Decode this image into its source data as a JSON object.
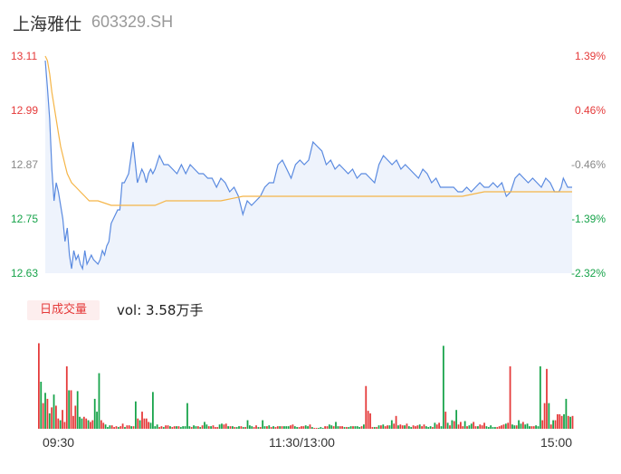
{
  "header": {
    "name": "上海雅仕",
    "code": "603329.SH"
  },
  "volume_panel": {
    "badge": "日成交量",
    "summary": "vol: 3.58万手"
  },
  "colors": {
    "up": "#e53a3a",
    "down": "#17a34a",
    "price_line": "#5a8ae0",
    "avg_line": "#f5b547",
    "fill": "#eef3fc"
  },
  "chart_data": [
    {
      "type": "line",
      "title": "",
      "y_ticks_left": [
        "13.11",
        "12.99",
        "12.87",
        "12.75",
        "12.63"
      ],
      "y_ticks_right": [
        "1.39%",
        "0.46%",
        "-0.46%",
        "-1.39%",
        "-2.32%"
      ],
      "x_ticks": [
        "09:30",
        "11:30/13:00",
        "15:00"
      ],
      "ylim": [
        12.63,
        13.11
      ],
      "x_range": [
        0,
        240
      ],
      "series": [
        {
          "key": "price",
          "x": [
            0,
            1,
            2,
            3,
            4,
            5,
            6,
            8,
            9,
            10,
            11,
            12,
            13,
            14,
            15,
            16,
            17,
            18,
            19,
            20,
            21,
            22,
            24,
            25,
            26,
            27,
            28,
            29,
            30,
            31,
            32,
            33,
            34,
            35,
            36,
            38,
            40,
            42,
            44,
            45,
            46,
            47,
            48,
            49,
            50,
            52,
            54,
            56,
            58,
            60,
            62,
            64,
            66,
            68,
            70,
            72,
            74,
            76,
            78,
            80,
            82,
            84,
            86,
            88,
            90,
            92,
            94,
            96,
            98,
            100,
            102,
            104,
            106,
            108,
            110,
            112,
            114,
            116,
            118,
            120,
            122,
            124,
            126,
            128,
            130,
            132,
            134,
            136,
            138,
            140,
            142,
            144,
            146,
            148,
            150,
            152,
            154,
            156,
            158,
            160,
            162,
            164,
            166,
            168,
            170,
            172,
            174,
            176,
            178,
            180,
            182,
            184,
            186,
            188,
            190,
            192,
            194,
            196,
            198,
            200,
            202,
            204,
            206,
            208,
            210,
            212,
            214,
            216,
            218,
            220,
            222,
            224,
            226,
            228,
            230,
            232,
            234,
            235,
            236,
            237,
            238,
            239,
            240
          ],
          "values": [
            13.1,
            13.04,
            12.97,
            12.86,
            12.79,
            12.83,
            12.81,
            12.75,
            12.7,
            12.73,
            12.67,
            12.64,
            12.68,
            12.66,
            12.67,
            12.65,
            12.64,
            12.68,
            12.65,
            12.66,
            12.67,
            12.66,
            12.65,
            12.66,
            12.68,
            12.67,
            12.69,
            12.7,
            12.74,
            12.75,
            12.76,
            12.77,
            12.77,
            12.83,
            12.83,
            12.85,
            12.92,
            12.83,
            12.86,
            12.85,
            12.83,
            12.85,
            12.86,
            12.85,
            12.86,
            12.89,
            12.87,
            12.87,
            12.86,
            12.85,
            12.87,
            12.85,
            12.87,
            12.86,
            12.85,
            12.85,
            12.84,
            12.84,
            12.82,
            12.84,
            12.83,
            12.81,
            12.82,
            12.8,
            12.76,
            12.79,
            12.78,
            12.79,
            12.8,
            12.82,
            12.83,
            12.83,
            12.87,
            12.88,
            12.86,
            12.84,
            12.87,
            12.88,
            12.87,
            12.88,
            12.92,
            12.91,
            12.9,
            12.87,
            12.88,
            12.86,
            12.87,
            12.86,
            12.85,
            12.86,
            12.84,
            12.85,
            12.85,
            12.84,
            12.83,
            12.87,
            12.89,
            12.88,
            12.87,
            12.88,
            12.86,
            12.87,
            12.86,
            12.85,
            12.84,
            12.86,
            12.85,
            12.83,
            12.84,
            12.82,
            12.82,
            12.82,
            12.82,
            12.81,
            12.81,
            12.82,
            12.81,
            12.82,
            12.83,
            12.82,
            12.82,
            12.83,
            12.82,
            12.83,
            12.8,
            12.81,
            12.84,
            12.85,
            12.84,
            12.83,
            12.84,
            12.83,
            12.82,
            12.84,
            12.83,
            12.81,
            12.81,
            12.82,
            12.84,
            12.83,
            12.82,
            12.82,
            12.82
          ]
        },
        {
          "key": "avg",
          "x": [
            0,
            1,
            2,
            3,
            4,
            5,
            6,
            7,
            8,
            9,
            10,
            12,
            14,
            16,
            18,
            20,
            24,
            30,
            40,
            50,
            55,
            60,
            70,
            80,
            90,
            100,
            110,
            120,
            130,
            140,
            150,
            160,
            170,
            180,
            190,
            200,
            210,
            220,
            230,
            240
          ],
          "values": [
            13.11,
            13.1,
            13.07,
            13.03,
            13,
            12.97,
            12.94,
            12.91,
            12.89,
            12.87,
            12.85,
            12.83,
            12.82,
            12.81,
            12.8,
            12.79,
            12.79,
            12.78,
            12.78,
            12.78,
            12.79,
            12.79,
            12.79,
            12.79,
            12.8,
            12.8,
            12.8,
            12.8,
            12.8,
            12.8,
            12.8,
            12.8,
            12.8,
            12.8,
            12.8,
            12.81,
            12.81,
            12.81,
            12.81,
            12.81
          ]
        }
      ]
    },
    {
      "type": "bar",
      "title": "",
      "ylim": [
        0,
        110
      ],
      "values": [
        100,
        55,
        30,
        42,
        35,
        18,
        25,
        40,
        27,
        12,
        10,
        22,
        8,
        73,
        45,
        45,
        15,
        27,
        44,
        14,
        12,
        14,
        12,
        10,
        8,
        10,
        35,
        20,
        65,
        10,
        7,
        5,
        2,
        4,
        4,
        2,
        3,
        2,
        3,
        6,
        2,
        4,
        4,
        3,
        3,
        32,
        12,
        10,
        20,
        12,
        12,
        8,
        7,
        43,
        3,
        5,
        2,
        3,
        2,
        4,
        4,
        3,
        2,
        3,
        3,
        3,
        2,
        3,
        3,
        30,
        3,
        2,
        4,
        3,
        3,
        2,
        4,
        8,
        5,
        3,
        3,
        4,
        2,
        2,
        5,
        6,
        5,
        6,
        3,
        3,
        3,
        2,
        2,
        3,
        3,
        2,
        2,
        10,
        4,
        3,
        2,
        4,
        2,
        2,
        10,
        3,
        3,
        4,
        2,
        3,
        2,
        3,
        3,
        3,
        3,
        3,
        3,
        4,
        5,
        3,
        2,
        2,
        3,
        3,
        4,
        3,
        5,
        2,
        1,
        1,
        1,
        2,
        1,
        3,
        3,
        5,
        4,
        3,
        8,
        3,
        3,
        3,
        2,
        2,
        2,
        3,
        3,
        3,
        3,
        2,
        3,
        5,
        50,
        21,
        18,
        2,
        2,
        2,
        4,
        4,
        5,
        3,
        4,
        4,
        10,
        6,
        15,
        4,
        5,
        4,
        4,
        6,
        3,
        2,
        4,
        3,
        4,
        5,
        3,
        5,
        3,
        2,
        3,
        2,
        7,
        5,
        7,
        3,
        97,
        20,
        7,
        4,
        10,
        9,
        22,
        5,
        8,
        3,
        9,
        3,
        4,
        6,
        8,
        3,
        3,
        5,
        4,
        7,
        3,
        2,
        4,
        2,
        2,
        2,
        3,
        4,
        5,
        6,
        7,
        73,
        5,
        4,
        4,
        10,
        6,
        8,
        5,
        6,
        3,
        3,
        3,
        4,
        3,
        73,
        10,
        30,
        70,
        30,
        5,
        10,
        10,
        17,
        17,
        15,
        17,
        35,
        15,
        14,
        15
      ],
      "up": [
        1,
        0,
        1,
        0,
        1,
        0,
        1,
        0,
        1,
        1,
        0,
        1,
        1,
        1,
        0,
        1,
        1,
        1,
        0,
        0,
        0,
        1,
        1,
        0,
        1,
        1,
        0,
        0,
        0,
        1,
        1,
        0,
        0,
        0,
        1,
        1,
        1,
        0,
        1,
        1,
        0,
        1,
        1,
        0,
        1,
        0,
        1,
        0,
        1,
        1,
        1,
        1,
        0,
        0,
        0,
        0,
        1,
        1,
        0,
        1,
        1,
        0,
        1,
        1,
        0,
        1,
        0,
        0,
        0,
        0,
        0,
        1,
        0,
        0,
        1,
        0,
        1,
        0,
        0,
        1,
        0,
        1,
        1,
        1,
        0,
        0,
        1,
        1,
        0,
        1,
        0,
        1,
        0,
        0,
        1,
        0,
        1,
        0,
        0,
        0,
        1,
        1,
        0,
        1,
        0,
        0,
        1,
        0,
        1,
        0,
        1,
        1,
        0,
        1,
        0,
        0,
        0,
        1,
        1,
        0,
        0,
        1,
        1,
        1,
        0,
        0,
        1,
        0,
        1,
        1,
        0,
        0,
        0,
        1,
        1,
        0,
        0,
        1,
        0,
        0,
        1,
        1,
        0,
        1,
        0,
        0,
        1,
        0,
        0,
        0,
        1,
        0,
        1,
        1,
        1,
        1,
        0,
        1,
        0,
        1,
        0,
        1,
        1,
        0,
        0,
        1,
        1,
        0,
        1,
        1,
        0,
        1,
        0,
        0,
        1,
        1,
        1,
        0,
        1,
        1,
        0,
        0,
        0,
        1,
        0,
        1,
        1,
        0,
        0,
        1,
        0,
        1,
        0,
        1,
        0,
        1,
        1,
        1,
        0,
        1,
        0,
        0,
        1,
        1,
        0,
        1,
        1,
        1,
        0,
        0,
        0,
        0,
        0,
        1,
        1,
        1,
        1,
        0,
        1,
        1,
        0,
        0,
        1,
        0,
        0,
        1,
        0,
        0,
        0,
        1,
        1,
        0,
        0,
        0,
        1,
        1,
        1,
        0,
        1,
        0,
        1,
        1,
        1,
        1,
        0,
        0,
        1,
        0,
        1,
        1
      ]
    }
  ]
}
